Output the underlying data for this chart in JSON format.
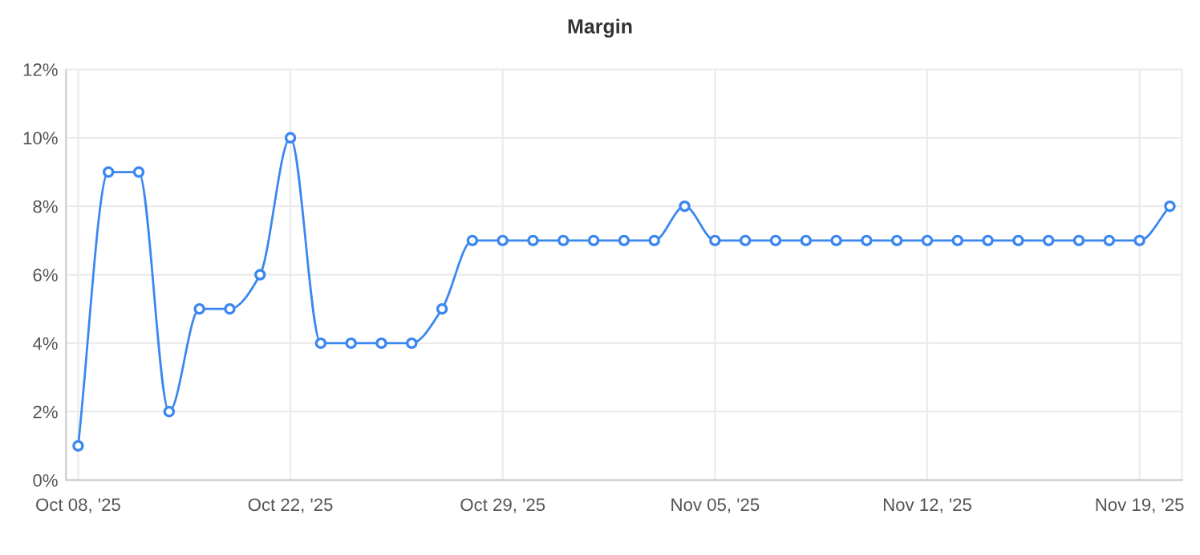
{
  "chart_data": {
    "type": "line",
    "title": "Margin",
    "categories": [
      "Oct 08, '25",
      null,
      null,
      null,
      null,
      null,
      null,
      "Oct 22, '25",
      null,
      null,
      null,
      null,
      null,
      null,
      "Oct 29, '25",
      null,
      null,
      null,
      null,
      null,
      null,
      "Nov 05, '25",
      null,
      null,
      null,
      null,
      null,
      null,
      "Nov 12, '25",
      null,
      null,
      null,
      null,
      null,
      null,
      "Nov 19, '25",
      null
    ],
    "series": [
      {
        "color": "#3b87f0",
        "values": [
          1,
          9,
          9,
          2,
          5,
          5,
          6,
          10,
          4,
          4,
          4,
          4,
          5,
          7,
          7,
          7,
          7,
          7,
          7,
          7,
          8,
          7,
          7,
          7,
          7,
          7,
          7,
          7,
          7,
          7,
          7,
          7,
          7,
          7,
          7,
          7,
          8
        ]
      }
    ],
    "ylim": [
      0,
      12
    ],
    "yticks": [
      {
        "value": 0,
        "label": "0%"
      },
      {
        "value": 2,
        "label": "2%"
      },
      {
        "value": 4,
        "label": "4%"
      },
      {
        "value": 6,
        "label": "6%"
      },
      {
        "value": 8,
        "label": "8%"
      },
      {
        "value": 10,
        "label": "10%"
      },
      {
        "value": 12,
        "label": "12%"
      }
    ],
    "grid": true,
    "marker": "circle",
    "line_style": "solid",
    "legend": false
  }
}
